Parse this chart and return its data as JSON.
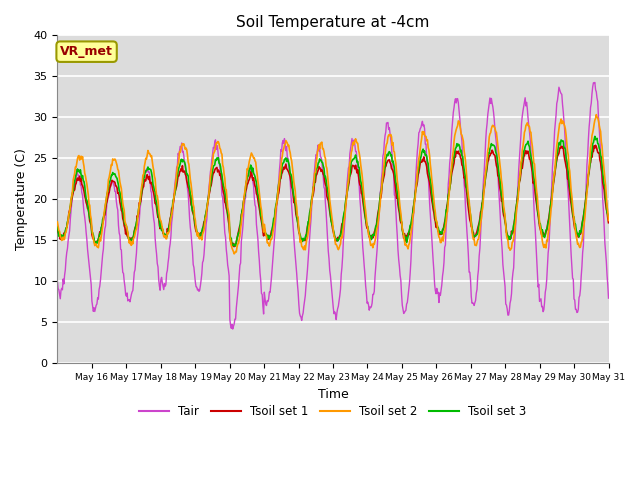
{
  "title": "Soil Temperature at -4cm",
  "xlabel": "Time",
  "ylabel": "Temperature (C)",
  "ylim": [
    0,
    40
  ],
  "xlim_days": [
    15,
    31
  ],
  "background_color": "#dcdcdc",
  "grid_color": "white",
  "annotation_text": "VR_met",
  "annotation_bg": "#ffff99",
  "annotation_border": "#999900",
  "annotation_text_color": "#990000",
  "colors": {
    "Tair": "#cc44cc",
    "Tsoil1": "#cc0000",
    "Tsoil2": "#ff9900",
    "Tsoil3": "#00bb00"
  },
  "legend_labels": [
    "Tair",
    "Tsoil set 1",
    "Tsoil set 2",
    "Tsoil set 3"
  ]
}
